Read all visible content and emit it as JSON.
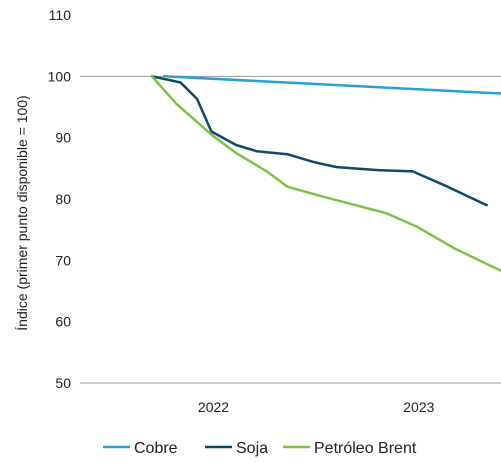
{
  "chart_data": {
    "type": "line",
    "ylabel": "Índice (primer punto disponible = 100)",
    "xlabel": "",
    "ylim": [
      50,
      110
    ],
    "yticks": [
      50,
      60,
      70,
      80,
      90,
      100,
      110
    ],
    "grid": "horizontal at 50 and 100",
    "xticks": [
      {
        "label": "2022",
        "t": 2022.0
      },
      {
        "label": "2023",
        "t": 2023.0
      }
    ],
    "xlim": [
      2021.35,
      2023.4
    ],
    "legend_position": "bottom",
    "series": [
      {
        "name": "Cobre",
        "color": "#2a9fd6",
        "points": [
          {
            "t": 2021.76,
            "v": 100.0
          },
          {
            "t": 2023.4,
            "v": 97.2
          }
        ]
      },
      {
        "name": "Soja",
        "color": "#0f4a65",
        "points": [
          {
            "t": 2021.7,
            "v": 100.0
          },
          {
            "t": 2021.84,
            "v": 99.0
          },
          {
            "t": 2021.92,
            "v": 96.3
          },
          {
            "t": 2021.99,
            "v": 91.0
          },
          {
            "t": 2022.11,
            "v": 88.8
          },
          {
            "t": 2022.21,
            "v": 87.8
          },
          {
            "t": 2022.36,
            "v": 87.3
          },
          {
            "t": 2022.49,
            "v": 86.0
          },
          {
            "t": 2022.6,
            "v": 85.2
          },
          {
            "t": 2022.81,
            "v": 84.7
          },
          {
            "t": 2022.97,
            "v": 84.5
          },
          {
            "t": 2023.14,
            "v": 82.0
          },
          {
            "t": 2023.33,
            "v": 79.0
          }
        ]
      },
      {
        "name": "Petróleo Brent",
        "color": "#7dc243",
        "points": [
          {
            "t": 2021.7,
            "v": 100.0
          },
          {
            "t": 2021.82,
            "v": 95.5
          },
          {
            "t": 2021.99,
            "v": 90.5
          },
          {
            "t": 2022.11,
            "v": 87.5
          },
          {
            "t": 2022.26,
            "v": 84.5
          },
          {
            "t": 2022.36,
            "v": 82.0
          },
          {
            "t": 2022.52,
            "v": 80.5
          },
          {
            "t": 2022.69,
            "v": 79.0
          },
          {
            "t": 2022.84,
            "v": 77.7
          },
          {
            "t": 2022.99,
            "v": 75.5
          },
          {
            "t": 2023.17,
            "v": 72.0
          },
          {
            "t": 2023.4,
            "v": 68.3
          }
        ]
      }
    ]
  }
}
